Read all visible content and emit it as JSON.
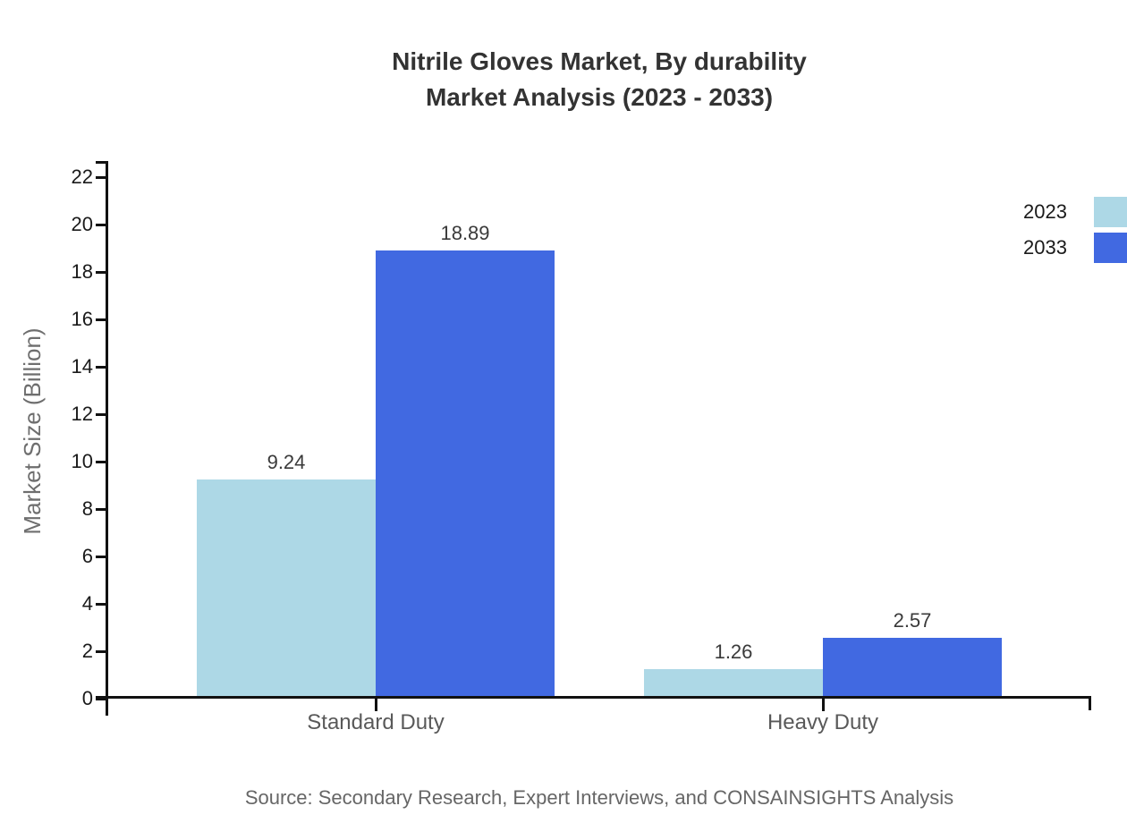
{
  "title": {
    "line1": "Nitrile Gloves Market, By durability",
    "line2": "Market Analysis (2023 - 2033)"
  },
  "chart_data": {
    "type": "bar",
    "categories": [
      "Standard Duty",
      "Heavy Duty"
    ],
    "series": [
      {
        "name": "2023",
        "color": "#ADD8E6",
        "values": [
          9.24,
          1.26
        ]
      },
      {
        "name": "2033",
        "color": "#4169E1",
        "values": [
          18.89,
          2.57
        ]
      }
    ],
    "value_labels": [
      [
        "9.24",
        "1.26"
      ],
      [
        "18.89",
        "2.57"
      ]
    ],
    "title": "Nitrile Gloves Market, By durability Market Analysis (2023 - 2033)",
    "xlabel": "",
    "ylabel": "Market Size (Billion)",
    "ylim": [
      0,
      22
    ],
    "ytick_step": 2,
    "grid": false,
    "legend_position": "top-right"
  },
  "source": {
    "text": "Source: Secondary Research, Expert Interviews, and CONSAINSIGHTS Analysis"
  },
  "colors": {
    "axis": "#111111",
    "title_text": "#333333",
    "tick_text": "#1a1a1a",
    "category_text": "#595959",
    "ylabel_text": "#6e6e6e",
    "value_text": "#3a3a3a",
    "source_text": "#666666",
    "background": "#ffffff"
  }
}
